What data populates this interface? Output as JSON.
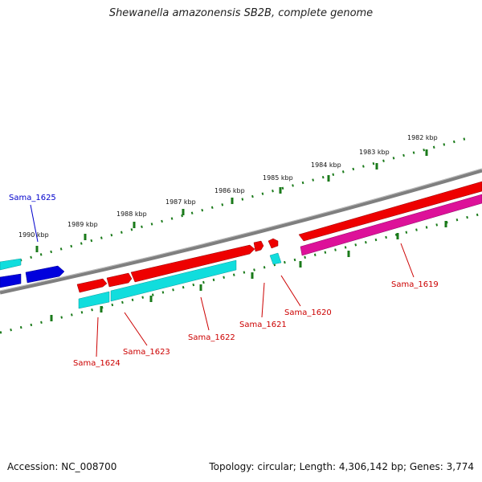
{
  "title": "Shewanella amazonensis SB2B, complete genome",
  "footer": {
    "accession": "Accession: NC_008700",
    "summary": "Topology: circular; Length: 4,306,142 bp; Genes: 3,774"
  },
  "kbp_labels": [
    "1982 kbp",
    "1983 kbp",
    "1984 kbp",
    "1985 kbp",
    "1986 kbp",
    "1987 kbp",
    "1988 kbp",
    "1989 kbp",
    "1990 kbp"
  ],
  "gene_labels": [
    "Sama_1625",
    "Sama_1624",
    "Sama_1623",
    "Sama_1622",
    "Sama_1621",
    "Sama_1620",
    "Sama_1619"
  ],
  "colors": {
    "backbone": "#7f7f7f",
    "forward_cds": "#ee0000",
    "forward_rna": "#0000dd",
    "reverse_cds": "#11dddd",
    "reverse_other": "#dd1199",
    "ticks": "#1a7a1a",
    "forward_label": "#0000cc",
    "reverse_label": "#cc0000"
  }
}
